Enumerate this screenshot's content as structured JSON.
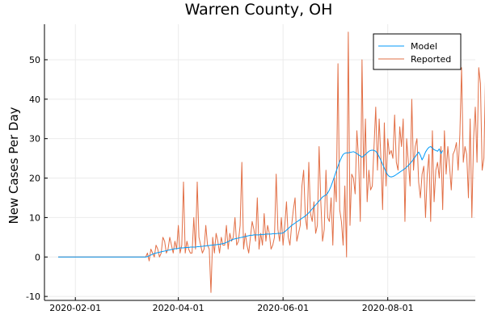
{
  "chart_data": {
    "type": "line",
    "title": "Warren County, OH",
    "xlabel": "",
    "ylabel": "New Cases Per Day",
    "x_axis": {
      "type": "date",
      "range": [
        "2020-01-14",
        "2020-09-21"
      ],
      "ticks": [
        "2020-02-01",
        "2020-04-01",
        "2020-06-01",
        "2020-08-01"
      ]
    },
    "y_axis": {
      "range": [
        -11,
        59
      ],
      "ticks": [
        -10,
        0,
        10,
        20,
        30,
        40,
        50
      ]
    },
    "grid": true,
    "legend": {
      "placement": "top-right",
      "frame": true
    },
    "series": [
      {
        "name": "Model",
        "color": "#009af9",
        "start": "2020-01-22",
        "values": [
          0,
          0,
          0,
          0,
          0,
          0,
          0,
          0,
          0,
          0,
          0,
          0,
          0,
          0,
          0,
          0,
          0,
          0,
          0,
          0,
          0,
          0,
          0,
          0,
          0,
          0,
          0,
          0,
          0,
          0,
          0,
          0,
          0,
          0,
          0,
          0,
          0,
          0,
          0,
          0,
          0,
          0,
          0,
          0,
          0,
          0,
          0,
          0,
          0,
          0,
          0,
          0,
          0.1,
          0.3,
          0.5,
          0.7,
          0.9,
          1.0,
          1.1,
          1.2,
          1.3,
          1.4,
          1.5,
          1.6,
          1.7,
          1.8,
          1.9,
          2.0,
          2.1,
          2.1,
          2.2,
          2.3,
          2.3,
          2.3,
          2.4,
          2.4,
          2.4,
          2.5,
          2.5,
          2.5,
          2.5,
          2.6,
          2.6,
          2.7,
          2.7,
          2.8,
          2.8,
          2.9,
          2.9,
          3.0,
          3.0,
          3.1,
          3.1,
          3.2,
          3.2,
          3.3,
          3.4,
          3.5,
          3.7,
          3.9,
          4.1,
          4.3,
          4.5,
          4.6,
          4.7,
          4.8,
          4.9,
          5.0,
          5.1,
          5.2,
          5.3,
          5.4,
          5.5,
          5.5,
          5.6,
          5.6,
          5.6,
          5.6,
          5.7,
          5.7,
          5.7,
          5.8,
          5.8,
          5.8,
          5.8,
          5.9,
          5.9,
          5.9,
          6.0,
          6.0,
          6.0,
          6.1,
          6.4,
          6.8,
          7.2,
          7.6,
          8.0,
          8.3,
          8.6,
          8.9,
          9.2,
          9.5,
          9.8,
          10.1,
          10.4,
          10.8,
          11.2,
          11.7,
          12.2,
          12.7,
          13.2,
          13.7,
          14.2,
          14.7,
          15.2,
          15.5,
          15.7,
          16.2,
          17.0,
          18.0,
          19.2,
          20.5,
          21.8,
          23.0,
          24.2,
          25.2,
          26.0,
          26.3,
          26.4,
          26.4,
          26.5,
          26.6,
          26.7,
          26.5,
          26.2,
          25.9,
          25.6,
          25.3,
          25.6,
          26.0,
          26.4,
          26.8,
          27.0,
          27.1,
          27.0,
          26.8,
          26.2,
          25.4,
          24.5,
          23.5,
          22.5,
          21.5,
          20.8,
          20.4,
          20.3,
          20.4,
          20.6,
          20.9,
          21.2,
          21.5,
          21.8,
          22.1,
          22.4,
          22.8,
          23.2,
          23.7,
          24.2,
          24.8,
          25.4,
          26.0,
          26.6,
          25.8,
          24.6,
          25.5,
          26.6,
          27.3,
          27.8,
          28.0,
          27.6,
          27.2,
          27.0,
          26.8,
          27.4,
          26.2,
          27.0
        ]
      },
      {
        "name": "Reported",
        "color": "#e26f46",
        "start": "2020-01-22",
        "values": [
          0,
          0,
          0,
          0,
          0,
          0,
          0,
          0,
          0,
          0,
          0,
          0,
          0,
          0,
          0,
          0,
          0,
          0,
          0,
          0,
          0,
          0,
          0,
          0,
          0,
          0,
          0,
          0,
          0,
          0,
          0,
          0,
          0,
          0,
          0,
          0,
          0,
          0,
          0,
          0,
          0,
          0,
          0,
          0,
          0,
          0,
          0,
          0,
          0,
          0,
          0,
          0,
          1,
          -1,
          2,
          1,
          0,
          3,
          2,
          0,
          1,
          5,
          4,
          1,
          2,
          5,
          3,
          1,
          4,
          2,
          8,
          1,
          3,
          19,
          1,
          4,
          2,
          1,
          1,
          10,
          2,
          19,
          5,
          3,
          1,
          2,
          8,
          3,
          2,
          -9,
          5,
          1,
          6,
          4,
          1,
          5,
          3,
          3,
          8,
          2,
          6,
          4,
          5,
          10,
          3,
          4,
          8,
          24,
          2,
          6,
          3,
          1,
          5,
          9,
          7,
          4,
          15,
          2,
          6,
          3,
          11,
          4,
          8,
          6,
          2,
          3,
          5,
          21,
          7,
          4,
          10,
          3,
          8,
          14,
          5,
          3,
          8,
          12,
          15,
          4,
          6,
          8,
          18,
          22,
          10,
          7,
          24,
          11,
          9,
          14,
          6,
          8,
          28,
          14,
          4,
          7,
          22,
          10,
          9,
          15,
          3,
          20,
          14,
          49,
          12,
          9,
          3,
          18,
          0,
          57,
          8,
          21,
          20,
          16,
          32,
          25,
          9,
          50,
          20,
          35,
          14,
          22,
          17,
          18,
          28,
          38,
          22,
          35,
          25,
          12,
          34,
          18,
          30,
          26,
          27,
          25,
          36,
          24,
          22,
          33,
          28,
          35,
          9,
          30,
          24,
          18,
          40,
          22,
          28,
          30,
          19,
          15,
          21,
          23,
          10,
          21,
          26,
          9,
          32,
          14,
          22,
          24,
          20,
          28,
          12,
          32,
          21,
          28,
          23,
          17,
          26,
          27,
          29,
          22,
          31,
          48,
          24,
          28,
          26,
          15,
          35,
          10,
          30,
          38,
          24,
          48,
          44,
          22,
          25,
          47,
          23,
          38,
          20,
          17,
          17
        ]
      }
    ]
  }
}
